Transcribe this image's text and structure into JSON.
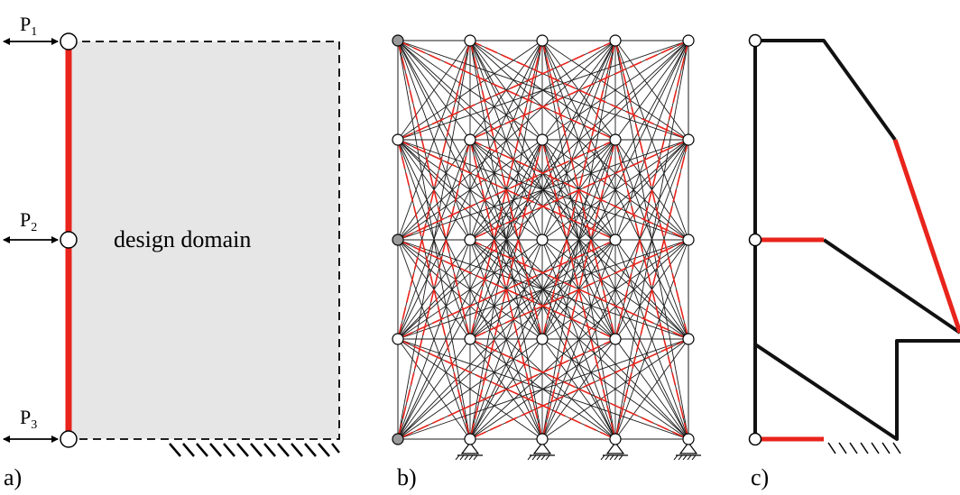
{
  "panel_a": {
    "label": "a)",
    "domain_label": "design domain",
    "load_points": [
      {
        "name": "P",
        "subscript": "1"
      },
      {
        "name": "P",
        "subscript": "2"
      },
      {
        "name": "P",
        "subscript": "3"
      }
    ]
  },
  "panel_b": {
    "label": "b)"
  },
  "panel_c": {
    "label": "c)"
  },
  "colors": {
    "tension_member": "#e8241c",
    "compression_member": "#111111",
    "domain_fill": "#e6e6e6",
    "node_fill": "#ffffff",
    "fixed_node_fill": "#9a9a9a"
  }
}
